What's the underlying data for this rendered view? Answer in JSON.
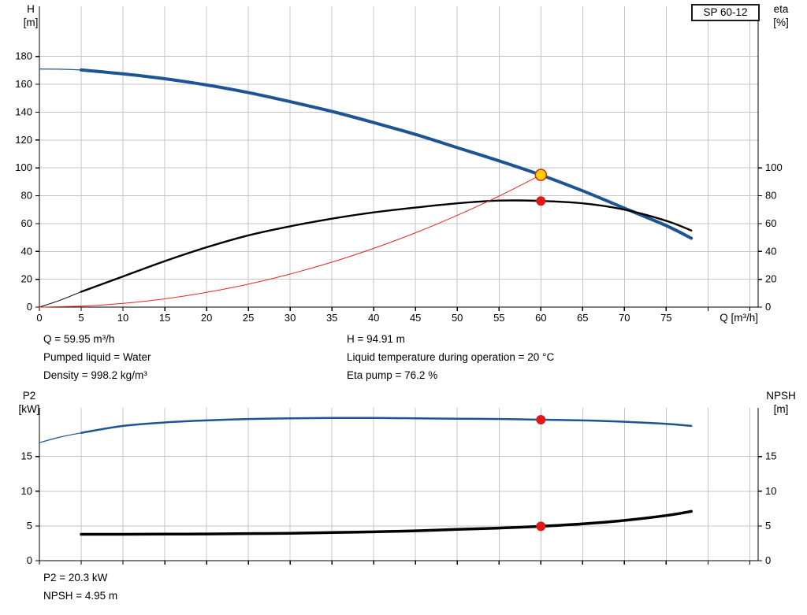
{
  "pump_type": "SP 60-12",
  "labels": {
    "h_axis": [
      "H",
      "[m]"
    ],
    "eta_axis": [
      "eta",
      "[%]"
    ],
    "q_axis": "Q [m³/h]",
    "p2_axis": [
      "P2",
      "[kW]"
    ],
    "npsh_axis": [
      "NPSH",
      "[m]"
    ]
  },
  "operating_point_info": {
    "q": "Q = 59.95 m³/h",
    "pumped_liquid": "Pumped liquid = Water",
    "density": "Density = 998.2 kg/m³",
    "h": "H = 94.91 m",
    "liquid_temperature": "Liquid temperature during operation = 20 °C",
    "eta_pump": "Eta pump = 76.2 %",
    "p2": "P2 = 20.3 kW",
    "npsh": "NPSH = 4.95 m"
  },
  "colors": {
    "curve_blue": "#1d5493",
    "curve_black": "#000000",
    "duty_red": "#e02820",
    "marker_red": "#e01818",
    "marker_yellow": "#ffd300",
    "grid": "#c6c6c6",
    "axis": "#000000"
  },
  "chart_data": [
    {
      "type": "line",
      "title": "SP 60-12",
      "xlabel": "Q [m³/h]",
      "ylabel_left": "H [m]",
      "ylabel_right": "eta [%]",
      "xlim": [
        0,
        86
      ],
      "ylim_left": [
        0,
        216
      ],
      "ylim_right": [
        0,
        216
      ],
      "grid": true,
      "show_x_labels": true,
      "x_ticks": [
        0,
        5,
        10,
        15,
        20,
        25,
        30,
        35,
        40,
        45,
        50,
        55,
        60,
        65,
        70,
        75
      ],
      "x_tick_marks": [
        0,
        5,
        10,
        15,
        20,
        25,
        30,
        35,
        40,
        45,
        50,
        55,
        60,
        65,
        70,
        75,
        80,
        85
      ],
      "x_grid": [
        5,
        10,
        15,
        20,
        25,
        30,
        35,
        40,
        45,
        50,
        55,
        60,
        65,
        70,
        75,
        80,
        85
      ],
      "y_grid": [
        20,
        40,
        60,
        80,
        100,
        120,
        140,
        160,
        180
      ],
      "y_ticks_left": [
        0,
        20,
        40,
        60,
        80,
        100,
        120,
        140,
        160,
        180
      ],
      "y_ticks_right": [
        0,
        20,
        40,
        60,
        80,
        100
      ],
      "series": [
        {
          "name": "head-curve-lead",
          "color_key": "curve_blue",
          "width": 1.2,
          "points": [
            [
              0,
              171
            ],
            [
              2.5,
              170.8
            ],
            [
              5,
              170.3
            ]
          ]
        },
        {
          "name": "head-curve",
          "color_key": "curve_blue",
          "width": 4,
          "points": [
            [
              5,
              170.3
            ],
            [
              10,
              167.5
            ],
            [
              15,
              164
            ],
            [
              20,
              159.5
            ],
            [
              25,
              154
            ],
            [
              30,
              147.5
            ],
            [
              35,
              140.5
            ],
            [
              40,
              132.5
            ],
            [
              45,
              124
            ],
            [
              50,
              114.5
            ],
            [
              55,
              105
            ],
            [
              60,
              94.9
            ],
            [
              65,
              83.5
            ],
            [
              70,
              71
            ],
            [
              75,
              58.5
            ],
            [
              78,
              49.5
            ]
          ]
        },
        {
          "name": "efficiency-curve-lead",
          "color_key": "curve_black",
          "width": 1,
          "points": [
            [
              0,
              0
            ],
            [
              2.5,
              5
            ],
            [
              5,
              11
            ]
          ]
        },
        {
          "name": "efficiency-curve",
          "color_key": "curve_black",
          "width": 2.4,
          "points": [
            [
              5,
              11
            ],
            [
              10,
              22
            ],
            [
              15,
              33
            ],
            [
              20,
              43
            ],
            [
              25,
              51.5
            ],
            [
              30,
              58
            ],
            [
              35,
              63.5
            ],
            [
              40,
              68
            ],
            [
              45,
              71.5
            ],
            [
              50,
              74.5
            ],
            [
              55,
              76.5
            ],
            [
              60,
              76.2
            ],
            [
              65,
              74.5
            ],
            [
              70,
              70
            ],
            [
              75,
              62
            ],
            [
              78,
              55
            ]
          ]
        },
        {
          "name": "duty-flow-curve",
          "color_key": "duty_red",
          "width": 1,
          "points": [
            [
              0,
              0
            ],
            [
              5,
              0.66
            ],
            [
              10,
              2.64
            ],
            [
              15,
              5.93
            ],
            [
              20,
              10.55
            ],
            [
              25,
              16.48
            ],
            [
              30,
              23.73
            ],
            [
              35,
              32.3
            ],
            [
              40,
              42.18
            ],
            [
              45,
              53.39
            ],
            [
              50,
              65.91
            ],
            [
              55,
              79.75
            ],
            [
              60,
              94.91
            ]
          ]
        }
      ],
      "markers": [
        {
          "name": "duty-point-head",
          "x": 60,
          "y": 94.91,
          "r": 7,
          "fill_key": "marker_yellow",
          "stroke_key": "duty_red",
          "stroke_width": 1.6
        },
        {
          "name": "duty-point-efficiency",
          "x": 60,
          "y": 76.2,
          "r": 5.5,
          "fill_key": "marker_red",
          "stroke_key": "marker_red",
          "stroke_width": 1
        }
      ]
    },
    {
      "type": "line",
      "title": "P2 / NPSH",
      "xlabel": "",
      "ylabel_left": "P2 [kW]",
      "ylabel_right": "NPSH [m]",
      "xlim": [
        0,
        86
      ],
      "ylim_left": [
        0,
        22
      ],
      "ylim_right": [
        0,
        22
      ],
      "grid": true,
      "show_x_labels": false,
      "x_ticks": [],
      "x_tick_marks": [
        0,
        5,
        10,
        15,
        20,
        25,
        30,
        35,
        40,
        45,
        50,
        55,
        60,
        65,
        70,
        75,
        80,
        85
      ],
      "x_grid": [
        5,
        10,
        15,
        20,
        25,
        30,
        35,
        40,
        45,
        50,
        55,
        60,
        65,
        70,
        75,
        80,
        85
      ],
      "y_grid": [
        5,
        10,
        15
      ],
      "y_ticks_left": [
        0,
        5,
        10,
        15
      ],
      "y_ticks_right": [
        0,
        5,
        10,
        15
      ],
      "series": [
        {
          "name": "p2-curve-lead",
          "color_key": "curve_blue",
          "width": 1.2,
          "points": [
            [
              0,
              17
            ],
            [
              2.5,
              17.8
            ],
            [
              5,
              18.4
            ]
          ]
        },
        {
          "name": "p2-curve",
          "color_key": "curve_blue",
          "width": 2.5,
          "points": [
            [
              5,
              18.4
            ],
            [
              10,
              19.4
            ],
            [
              15,
              19.9
            ],
            [
              20,
              20.2
            ],
            [
              25,
              20.4
            ],
            [
              30,
              20.5
            ],
            [
              35,
              20.55
            ],
            [
              40,
              20.55
            ],
            [
              45,
              20.5
            ],
            [
              50,
              20.45
            ],
            [
              55,
              20.4
            ],
            [
              60,
              20.3
            ],
            [
              65,
              20.2
            ],
            [
              70,
              20
            ],
            [
              75,
              19.7
            ],
            [
              78,
              19.4
            ]
          ]
        },
        {
          "name": "npsh-curve",
          "color_key": "curve_black",
          "width": 3.5,
          "points": [
            [
              5,
              3.8
            ],
            [
              10,
              3.8
            ],
            [
              15,
              3.82
            ],
            [
              20,
              3.85
            ],
            [
              25,
              3.9
            ],
            [
              30,
              3.95
            ],
            [
              35,
              4.05
            ],
            [
              40,
              4.15
            ],
            [
              45,
              4.3
            ],
            [
              50,
              4.5
            ],
            [
              55,
              4.7
            ],
            [
              60,
              4.95
            ],
            [
              65,
              5.3
            ],
            [
              70,
              5.8
            ],
            [
              75,
              6.5
            ],
            [
              78,
              7.1
            ]
          ]
        }
      ],
      "markers": [
        {
          "name": "duty-point-p2",
          "x": 60,
          "y": 20.3,
          "r": 5.5,
          "fill_key": "marker_red",
          "stroke_key": "marker_red",
          "stroke_width": 1
        },
        {
          "name": "duty-point-npsh",
          "x": 60,
          "y": 4.95,
          "r": 5.5,
          "fill_key": "marker_red",
          "stroke_key": "marker_red",
          "stroke_width": 1
        }
      ]
    }
  ]
}
